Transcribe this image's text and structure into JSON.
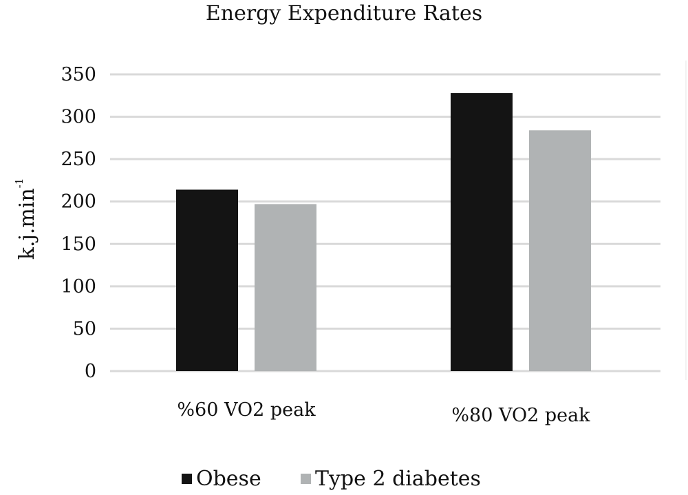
{
  "chart_data": {
    "type": "bar",
    "title": "Energy Expenditure Rates",
    "ylabel": "k.j.min",
    "ylabel_superscript": "-1",
    "xlabel": "",
    "categories": [
      "%60 VO2 peak",
      "%80 VO2 peak"
    ],
    "series": [
      {
        "name": "Obese",
        "color": "#141414",
        "values": [
          214,
          328
        ]
      },
      {
        "name": "Type 2 diabetes",
        "color": "#b0b3b4",
        "values": [
          197,
          284
        ]
      }
    ],
    "yticks": [
      0,
      50,
      100,
      150,
      200,
      250,
      300,
      350
    ],
    "ylim": [
      0,
      350
    ],
    "grid": true,
    "legend_position": "bottom"
  }
}
